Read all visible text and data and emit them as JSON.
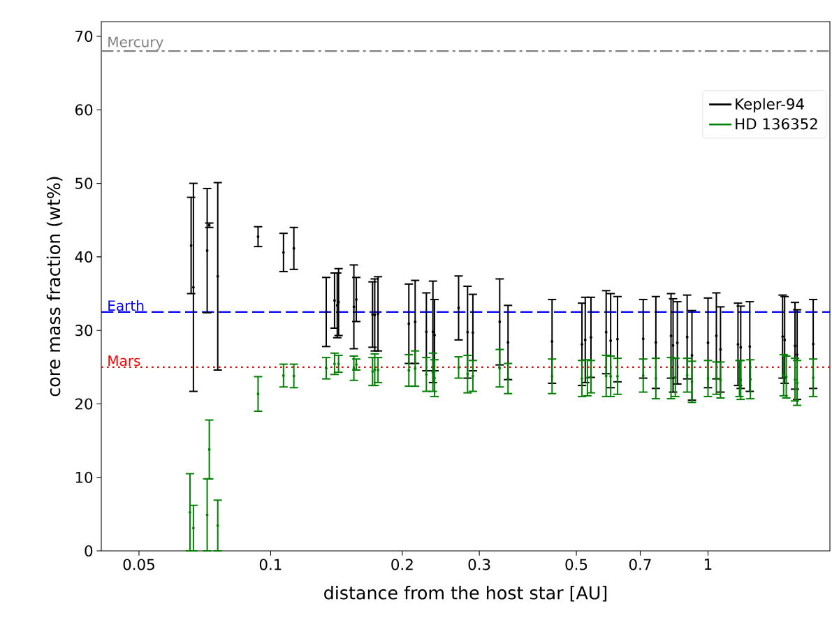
{
  "chart_data": {
    "type": "scatter",
    "xlabel": "distance from the host star [AU]",
    "ylabel": "core mass fraction (wt%)",
    "log": "x",
    "legend": "top right",
    "xlim": [
      0.041,
      1.9
    ],
    "ylim": [
      0,
      72
    ],
    "xticks": [
      0.05,
      0.1,
      0.2,
      0.3,
      0.5,
      0.7,
      1
    ],
    "yticks": [
      0,
      10,
      20,
      30,
      40,
      50,
      60,
      70
    ],
    "ref_lines": [
      {
        "axis": "y",
        "value": 68,
        "label": "Mercury",
        "color": "#808080",
        "line_style": "dashdot"
      },
      {
        "axis": "y",
        "value": 32.5,
        "label": "Earth",
        "color": "#0000ff",
        "line_style": "dashed"
      },
      {
        "axis": "y",
        "value": 25,
        "label": "Mars",
        "color": "#ff0000",
        "line_style": "dotted"
      }
    ],
    "series": [
      {
        "name": "Kepler-94",
        "color": "#000000",
        "x": [
          0.0658,
          0.0666,
          0.0716,
          0.0724,
          0.0757,
          0.0936,
          0.107,
          0.113,
          0.134,
          0.14,
          0.142,
          0.143,
          0.155,
          0.157,
          0.171,
          0.173,
          0.176,
          0.207,
          0.214,
          0.227,
          0.235,
          0.237,
          0.269,
          0.282,
          0.29,
          0.334,
          0.349,
          0.44,
          0.515,
          0.524,
          0.54,
          0.585,
          0.599,
          0.621,
          0.711,
          0.76,
          0.823,
          0.832,
          0.851,
          0.896,
          0.919,
          1.0,
          1.045,
          1.068,
          1.171,
          1.188,
          1.246,
          1.481,
          1.497,
          1.581,
          1.599,
          1.74
        ],
        "values": [
          41.55,
          35.85,
          40.85,
          44.3,
          37.35,
          42.75,
          40.6,
          41.15,
          32.5,
          34.05,
          33.4,
          33.85,
          33.2,
          34.2,
          32.15,
          32.1,
          32.25,
          30.9,
          31.15,
          29.8,
          29.8,
          29.35,
          33.05,
          29.75,
          29.7,
          31.15,
          28.35,
          28.5,
          28.1,
          28.7,
          29.05,
          29.75,
          28.6,
          28.8,
          28.85,
          28.35,
          29.25,
          27.95,
          28.3,
          29.1,
          26.6,
          28.3,
          29.25,
          27.4,
          28.1,
          27.7,
          27.8,
          29.15,
          28.7,
          27.9,
          26.7,
          28.15
        ],
        "errors": [
          6.55,
          14.15,
          8.45,
          0.3,
          12.75,
          1.35,
          2.6,
          2.85,
          4.7,
          3.75,
          4.4,
          4.55,
          5.7,
          3.0,
          4.45,
          4.9,
          5.05,
          5.4,
          5.65,
          5.3,
          6.9,
          4.85,
          4.35,
          6.25,
          5.2,
          5.85,
          5.05,
          5.7,
          5.6,
          5.8,
          5.45,
          5.65,
          6.4,
          5.8,
          5.35,
          6.25,
          5.75,
          6.35,
          5.6,
          5.7,
          6.1,
          6.1,
          5.85,
          5.8,
          5.6,
          5.6,
          6.1,
          5.65,
          5.9,
          5.9,
          6.1,
          6.05
        ]
      },
      {
        "name": "HD 136352",
        "color": "#008000",
        "x": [
          0.0654,
          0.0666,
          0.0716,
          0.0724,
          0.0757,
          0.0936,
          0.107,
          0.113,
          0.134,
          0.14,
          0.143,
          0.155,
          0.157,
          0.171,
          0.173,
          0.176,
          0.207,
          0.214,
          0.227,
          0.235,
          0.237,
          0.269,
          0.282,
          0.29,
          0.334,
          0.349,
          0.44,
          0.515,
          0.53,
          0.54,
          0.585,
          0.599,
          0.621,
          0.711,
          0.76,
          0.823,
          0.842,
          0.896,
          0.919,
          1.0,
          1.045,
          1.068,
          1.18,
          1.188,
          1.25,
          1.489,
          1.51,
          1.581,
          1.599,
          1.74
        ],
        "values": [
          5.25,
          3.1,
          4.9,
          13.8,
          3.45,
          21.35,
          23.85,
          23.8,
          24.85,
          25.45,
          25.45,
          24.85,
          25.35,
          24.4,
          24.65,
          24.6,
          24.55,
          24.8,
          24.0,
          24.3,
          23.5,
          24.95,
          24.05,
          23.8,
          24.85,
          23.45,
          23.75,
          23.45,
          23.55,
          23.7,
          23.8,
          23.75,
          23.75,
          23.85,
          23.45,
          23.5,
          23.6,
          23.9,
          23.0,
          23.45,
          23.5,
          23.25,
          23.45,
          23.25,
          23.35,
          23.9,
          23.65,
          23.3,
          22.85,
          23.55
        ],
        "errors": [
          5.25,
          3.1,
          4.9,
          4.0,
          3.45,
          2.35,
          1.55,
          1.6,
          1.45,
          1.45,
          1.15,
          1.65,
          0.75,
          1.9,
          2.15,
          1.7,
          2.15,
          2.4,
          2.3,
          2.6,
          2.5,
          1.45,
          2.55,
          2.1,
          2.55,
          2.05,
          2.35,
          2.45,
          2.45,
          2.2,
          2.8,
          2.75,
          2.45,
          2.25,
          2.75,
          2.8,
          2.6,
          2.3,
          2.8,
          2.45,
          2.2,
          2.45,
          2.45,
          2.65,
          2.65,
          2.8,
          2.85,
          2.9,
          3.05,
          2.55
        ]
      }
    ]
  }
}
